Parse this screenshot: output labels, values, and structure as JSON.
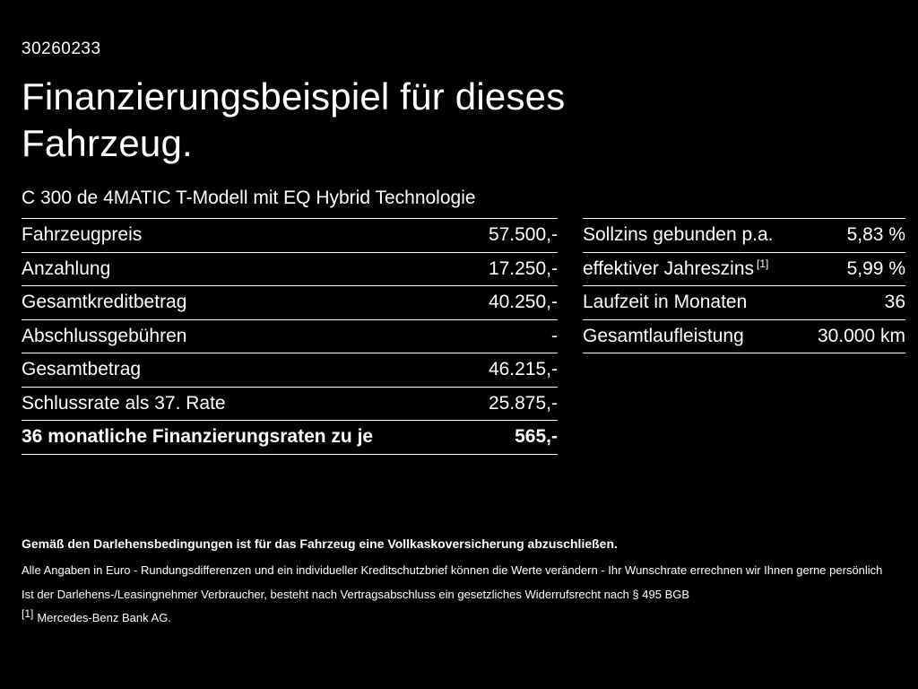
{
  "page": {
    "id_number": "30260233",
    "title_line1": "Finanzierungsbeispiel für dieses",
    "title_line2": "Fahrzeug.",
    "subtitle": "C 300 de 4MATIC T-Modell mit EQ Hybrid Technologie"
  },
  "left_table": {
    "rows": [
      {
        "label": "Fahrzeugpreis",
        "value": "57.500,-"
      },
      {
        "label": "Anzahlung",
        "value": "17.250,-"
      },
      {
        "label": "Gesamtkreditbetrag",
        "value": "40.250,-"
      },
      {
        "label": "Abschlussgebühren",
        "value": "-"
      },
      {
        "label": "Gesamtbetrag",
        "value": "46.215,-"
      },
      {
        "label": "Schlussrate als 37. Rate",
        "value": "25.875,-"
      },
      {
        "label": "36 monatliche Finanzierungsraten zu je",
        "value": "565,-"
      }
    ]
  },
  "right_table": {
    "rows": [
      {
        "label": "Sollzins gebunden p.a.",
        "sup": "",
        "value": "5,83 %"
      },
      {
        "label": "effektiver Jahreszins",
        "sup": "[1]",
        "value": "5,99 %"
      },
      {
        "label": "Laufzeit in Monaten",
        "sup": "",
        "value": "36"
      },
      {
        "label": "Gesamtlaufleistung",
        "sup": "",
        "value": "30.000 km"
      }
    ]
  },
  "footer": {
    "line1": "Gemäß den Darlehensbedingungen ist für das Fahrzeug eine Vollkaskoversicherung abzuschließen.",
    "line2": "Alle Angaben in Euro - Rundungsdifferenzen und ein individueller Kreditschutzbrief können die Werte verändern - Ihr Wunschrate errechnen wir Ihnen gerne persönlich",
    "line3": "Ist der Darlehens-/Leasingnehmer Verbraucher, besteht nach Vertragsabschluss ein gesetzliches Widerrufsrecht nach § 495 BGB",
    "footnote_marker": "[1]",
    "footnote_text": "Mercedes-Benz Bank AG."
  }
}
